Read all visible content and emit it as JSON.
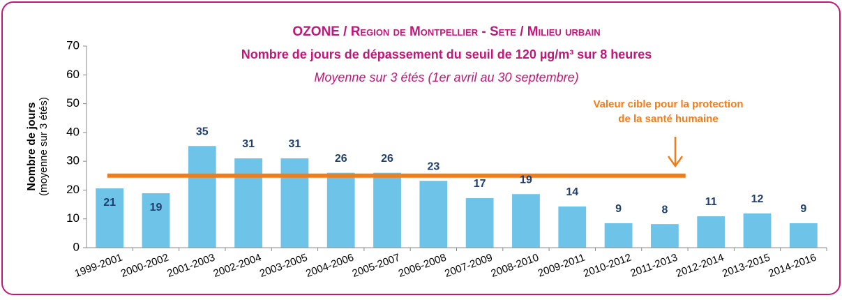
{
  "chart_data": {
    "type": "bar",
    "title": "OZONE / Region de Montpellier - Sete / Milieu urbain",
    "subtitle": "Nombre de jours de dépassement du seuil de 120 µg/m³ sur 8 heures",
    "subtitle2": "Moyenne sur 3 étés (1er avril au 30 septembre)",
    "ylabel": [
      "Nombre de jours",
      "(moyenne sur 3 étés)"
    ],
    "categories": [
      "1999-2001",
      "2000-2002",
      "2001-2003",
      "2002-2004",
      "2003-2005",
      "2004-2006",
      "2005-2007",
      "2006-2008",
      "2007-2009",
      "2008-2010",
      "2009-2011",
      "2010-2012",
      "2011-2013",
      "2012-2014",
      "2013-2015",
      "2014-2016"
    ],
    "values": [
      20.6,
      18.9,
      35.3,
      31.0,
      31.0,
      26.0,
      26.0,
      23.2,
      17.2,
      18.6,
      14.3,
      8.5,
      8.2,
      10.9,
      11.9,
      8.5
    ],
    "value_labels": [
      "21",
      "19",
      "35",
      "31",
      "31",
      "26",
      "26",
      "23",
      "17",
      "19",
      "14",
      "9",
      "8",
      "11",
      "12",
      "9"
    ],
    "color": "#6ec3e8",
    "ylim": [
      0,
      70
    ],
    "yticks": [
      0,
      10,
      20,
      30,
      40,
      50,
      60,
      70
    ],
    "grid": false,
    "target": {
      "value": 25,
      "color": "#f07c1a",
      "label": [
        "Valeur cible pour la protection",
        "de la santé humaine"
      ]
    }
  }
}
